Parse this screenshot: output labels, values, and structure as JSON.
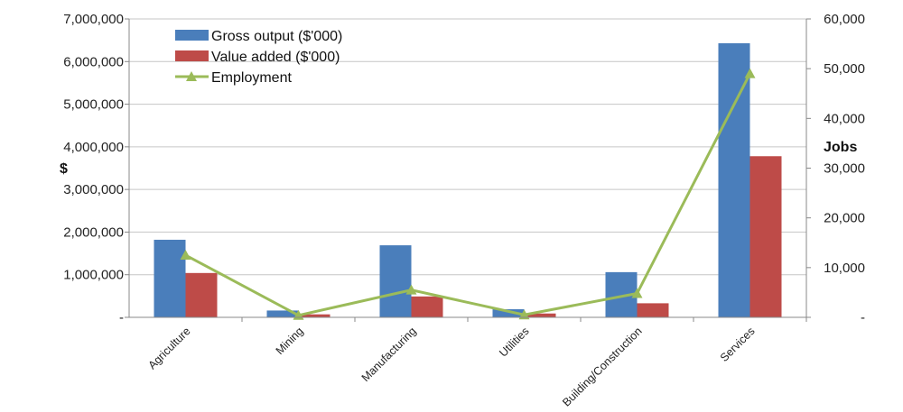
{
  "chart_data": {
    "type": "bar",
    "categories": [
      "Agriculture",
      "Mining",
      "Manufacturing",
      "Utilities",
      "Building/Construction",
      "Services"
    ],
    "series": [
      {
        "name": "Gross output ($'000)",
        "kind": "bar",
        "axis": "left",
        "color": "#4a7ebb",
        "values": [
          1820000,
          160000,
          1690000,
          190000,
          1060000,
          6430000
        ]
      },
      {
        "name": "Value added ($'000)",
        "kind": "bar",
        "axis": "left",
        "color": "#be4b48",
        "values": [
          1040000,
          70000,
          490000,
          90000,
          330000,
          3780000
        ]
      },
      {
        "name": "Employment",
        "kind": "line",
        "marker": "triangle",
        "axis": "right",
        "color": "#9bbb59",
        "values": [
          12500,
          400,
          5500,
          500,
          4800,
          49000
        ]
      }
    ],
    "y_left": {
      "label": "$",
      "range": [
        0,
        7000000
      ],
      "ticks": [
        "-",
        "1,000,000",
        "2,000,000",
        "3,000,000",
        "4,000,000",
        "5,000,000",
        "6,000,000",
        "7,000,000"
      ]
    },
    "y_right": {
      "label": "Jobs",
      "range": [
        0,
        60000
      ],
      "ticks": [
        "-",
        "10,000",
        "20,000",
        "30,000",
        "40,000",
        "50,000",
        "60,000"
      ]
    },
    "grid": true,
    "legend_position": "top-left"
  }
}
